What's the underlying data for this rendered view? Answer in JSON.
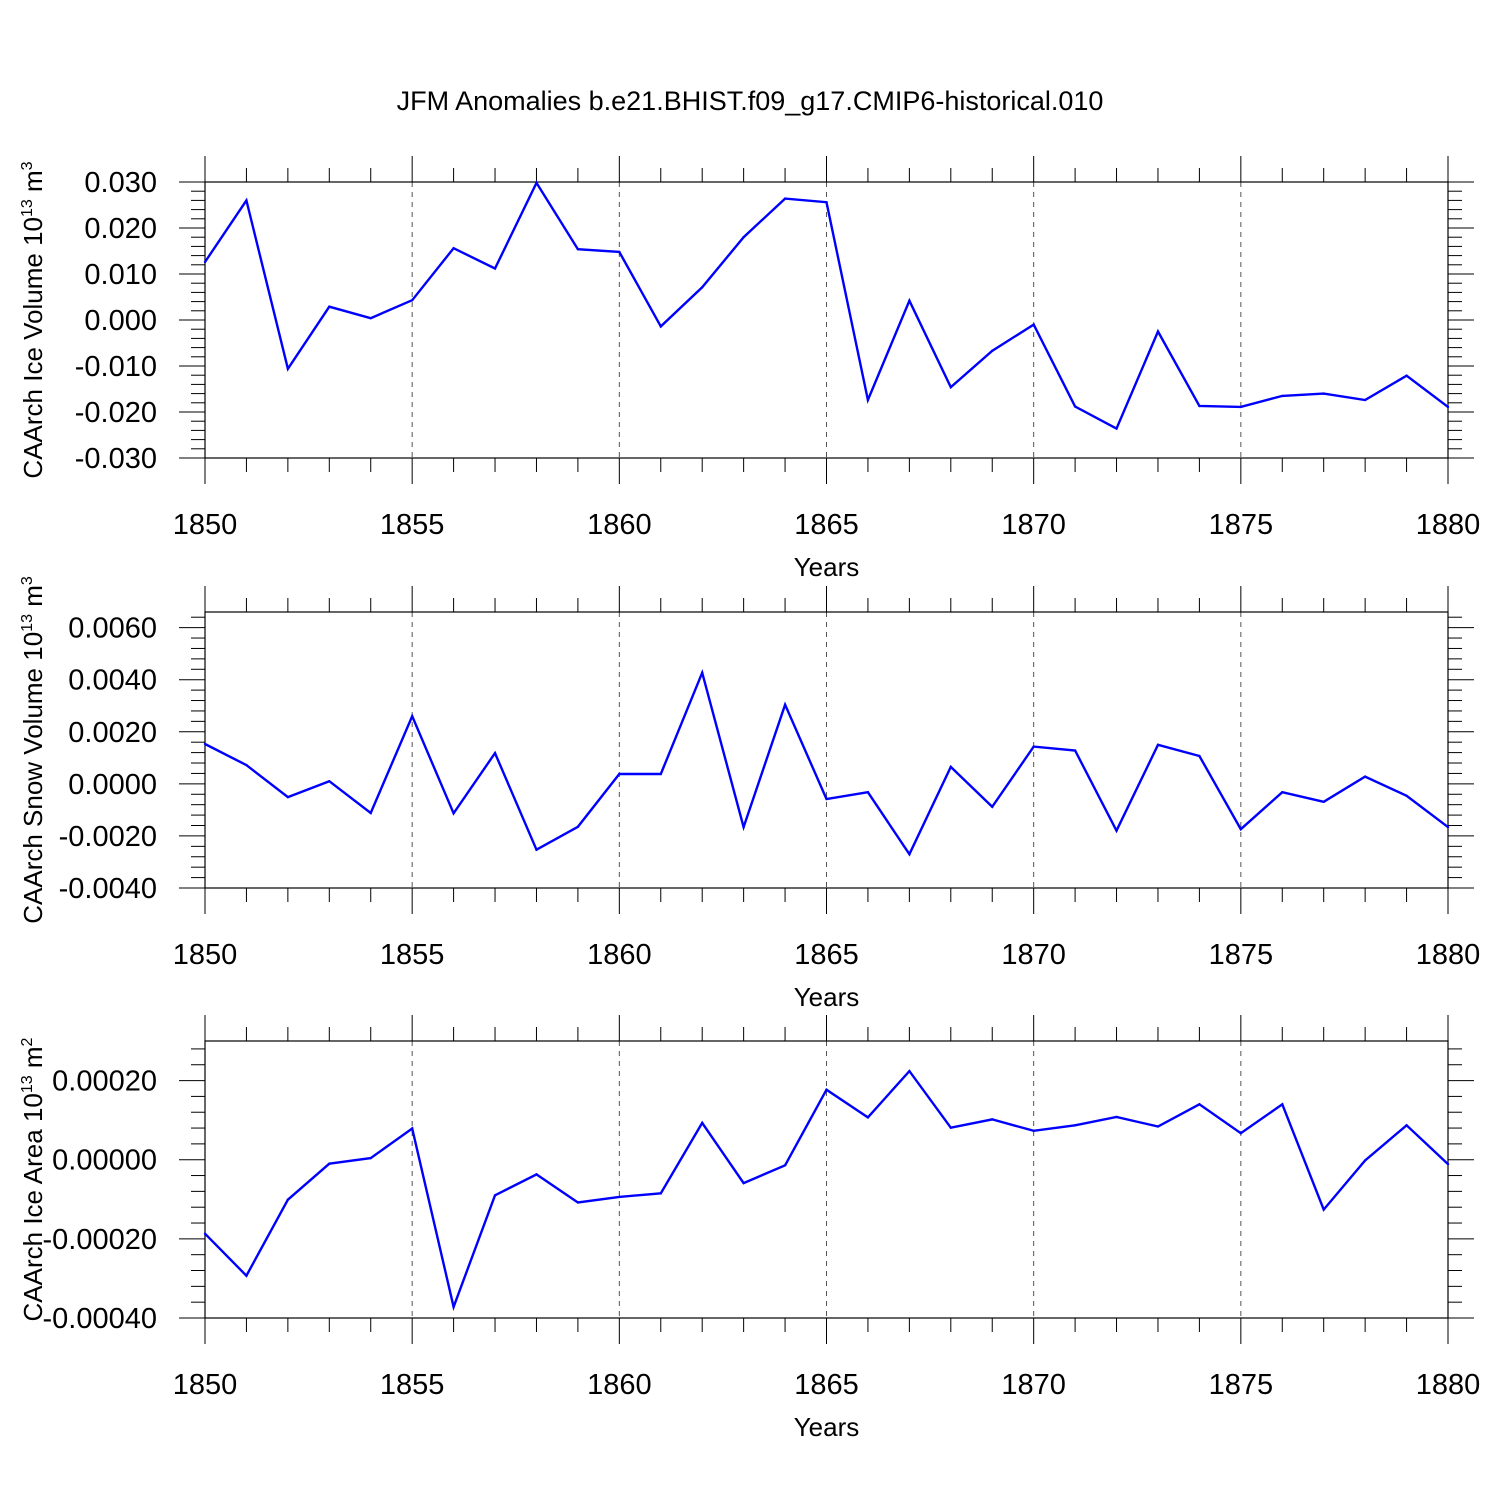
{
  "title": "JFM Anomalies b.e21.BHIST.f09_g17.CMIP6-historical.010",
  "colors": {
    "line": "#0000ff",
    "axis": "#000000",
    "grid": "#555555"
  },
  "chart_data": [
    {
      "type": "line",
      "xlabel": "Years",
      "ylabel": "CAArch Ice Volume 10",
      "ylabel_exp": "13",
      "ylabel_unit": " m",
      "ylabel_unit_exp": "3",
      "xlim": [
        1850,
        1880
      ],
      "ylim": [
        -0.03,
        0.03
      ],
      "xticks": [
        "1850",
        "1855",
        "1860",
        "1865",
        "1870",
        "1875",
        "1880"
      ],
      "yticks": [
        "-0.030",
        "-0.020",
        "-0.010",
        "0.000",
        "0.010",
        "0.020",
        "0.030"
      ],
      "ytick_values": [
        -0.03,
        -0.02,
        -0.01,
        0.0,
        0.01,
        0.02,
        0.03
      ],
      "xgrid": true,
      "x": [
        1850,
        1851,
        1852,
        1853,
        1854,
        1855,
        1856,
        1857,
        1858,
        1859,
        1860,
        1861,
        1862,
        1863,
        1864,
        1865,
        1866,
        1867,
        1868,
        1869,
        1870,
        1871,
        1872,
        1873,
        1874,
        1875,
        1876,
        1877,
        1878,
        1879,
        1880
      ],
      "values": [
        0.0126,
        0.026,
        -0.0106,
        0.0029,
        0.0004,
        0.0043,
        0.0156,
        0.0112,
        0.0298,
        0.0154,
        0.0148,
        -0.0014,
        0.0071,
        0.018,
        0.0264,
        0.0256,
        -0.0174,
        0.0042,
        -0.0146,
        -0.0067,
        -0.001,
        -0.0188,
        -0.0236,
        -0.0025,
        -0.0187,
        -0.0189,
        -0.0165,
        -0.016,
        -0.0174,
        -0.0121,
        -0.0189
      ]
    },
    {
      "type": "line",
      "xlabel": "Years",
      "ylabel": "CAArch Snow Volume 10",
      "ylabel_exp": "13",
      "ylabel_unit": " m",
      "ylabel_unit_exp": "3",
      "xlim": [
        1850,
        1880
      ],
      "ylim": [
        -0.004,
        0.0066
      ],
      "xticks": [
        "1850",
        "1855",
        "1860",
        "1865",
        "1870",
        "1875",
        "1880"
      ],
      "yticks": [
        "-0.0040",
        "-0.0020",
        "0.0000",
        "0.0020",
        "0.0040",
        "0.0060"
      ],
      "ytick_values": [
        -0.004,
        -0.002,
        0.0,
        0.002,
        0.004,
        0.006
      ],
      "xgrid": true,
      "x": [
        1850,
        1851,
        1852,
        1853,
        1854,
        1855,
        1856,
        1857,
        1858,
        1859,
        1860,
        1861,
        1862,
        1863,
        1864,
        1865,
        1866,
        1867,
        1868,
        1869,
        1870,
        1871,
        1872,
        1873,
        1874,
        1875,
        1876,
        1877,
        1878,
        1879,
        1880
      ],
      "values": [
        0.00153,
        0.00072,
        -0.00051,
        0.0001,
        -0.00112,
        0.0026,
        -0.00113,
        0.00118,
        -0.00253,
        -0.00165,
        0.00038,
        0.00038,
        0.00427,
        -0.00166,
        0.00304,
        -0.00058,
        -0.00032,
        -0.0027,
        0.00065,
        -0.00088,
        0.00143,
        0.00128,
        -0.0018,
        0.0015,
        0.00107,
        -0.00174,
        -0.00032,
        -0.00069,
        0.00028,
        -0.00046,
        -0.00166
      ]
    },
    {
      "type": "line",
      "xlabel": "Years",
      "ylabel": "CAArch Ice Area 10",
      "ylabel_exp": "13",
      "ylabel_unit": " m",
      "ylabel_unit_exp": "2",
      "xlim": [
        1850,
        1880
      ],
      "ylim": [
        -0.0004,
        0.0003
      ],
      "xticks": [
        "1850",
        "1855",
        "1860",
        "1865",
        "1870",
        "1875",
        "1880"
      ],
      "yticks": [
        "-0.00040",
        "-0.00020",
        "0.00000",
        "0.00020"
      ],
      "ytick_values": [
        -0.0004,
        -0.0002,
        0.0,
        0.0002
      ],
      "xgrid": true,
      "x": [
        1850,
        1851,
        1852,
        1853,
        1854,
        1855,
        1856,
        1857,
        1858,
        1859,
        1860,
        1861,
        1862,
        1863,
        1864,
        1865,
        1866,
        1867,
        1868,
        1869,
        1870,
        1871,
        1872,
        1873,
        1874,
        1875,
        1876,
        1877,
        1878,
        1879,
        1880
      ],
      "values": [
        -0.000187,
        -0.000293,
        -0.000101,
        -1e-05,
        4e-06,
        7.9e-05,
        -0.000372,
        -9e-05,
        -3.7e-05,
        -0.000108,
        -9.4e-05,
        -8.5e-05,
        9.3e-05,
        -5.9e-05,
        -1.4e-05,
        0.000177,
        0.000107,
        0.000224,
        8.1e-05,
        0.000102,
        7.3e-05,
        8.7e-05,
        0.000108,
        8.4e-05,
        0.00014,
        6.7e-05,
        0.00014,
        -0.000126,
        -2e-06,
        8.7e-05,
        -1.1e-05
      ]
    }
  ]
}
